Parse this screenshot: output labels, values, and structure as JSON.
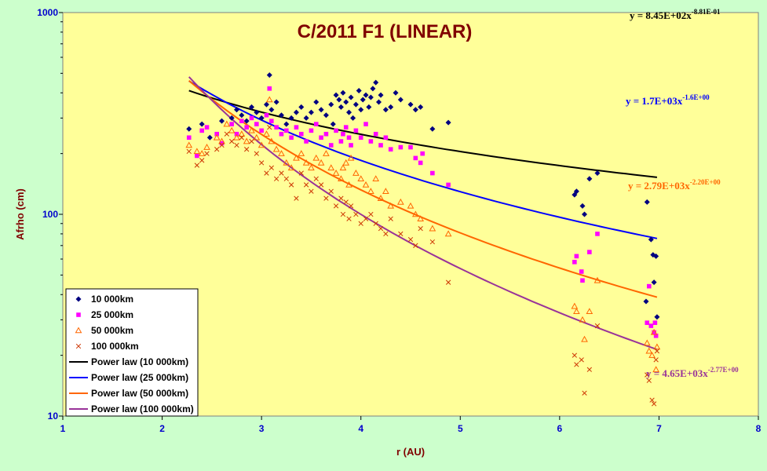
{
  "chart_data": {
    "type": "scatter",
    "title": "C/2011 F1 (LINEAR)",
    "xlabel": "r (AU)",
    "ylabel": "Afrho (cm)",
    "xlim": [
      1,
      8
    ],
    "ylim": [
      10,
      1000
    ],
    "yscale": "log",
    "grid": false,
    "legend_position": "bottom-left",
    "x_ticks": [
      "1",
      "2",
      "3",
      "4",
      "5",
      "6",
      "7",
      "8"
    ],
    "y_ticks": [
      "10",
      "100",
      "1000"
    ],
    "plot_background": "#ffff99",
    "page_background": "#ccffcc",
    "series": [
      {
        "name": "10 000km",
        "marker": "diamond",
        "color": "#000080",
        "points": [
          [
            2.27,
            265
          ],
          [
            2.4,
            280
          ],
          [
            2.48,
            240
          ],
          [
            2.6,
            290
          ],
          [
            2.7,
            300
          ],
          [
            2.75,
            330
          ],
          [
            2.8,
            310
          ],
          [
            2.85,
            290
          ],
          [
            2.9,
            340
          ],
          [
            2.95,
            320
          ],
          [
            3.0,
            300
          ],
          [
            3.05,
            350
          ],
          [
            3.08,
            490
          ],
          [
            3.1,
            330
          ],
          [
            3.15,
            360
          ],
          [
            3.2,
            310
          ],
          [
            3.25,
            280
          ],
          [
            3.3,
            300
          ],
          [
            3.35,
            320
          ],
          [
            3.4,
            340
          ],
          [
            3.45,
            300
          ],
          [
            3.5,
            320
          ],
          [
            3.55,
            360
          ],
          [
            3.6,
            330
          ],
          [
            3.65,
            310
          ],
          [
            3.7,
            350
          ],
          [
            3.72,
            280
          ],
          [
            3.75,
            390
          ],
          [
            3.78,
            370
          ],
          [
            3.8,
            340
          ],
          [
            3.82,
            400
          ],
          [
            3.85,
            360
          ],
          [
            3.88,
            320
          ],
          [
            3.9,
            380
          ],
          [
            3.92,
            300
          ],
          [
            3.95,
            350
          ],
          [
            3.98,
            410
          ],
          [
            4.0,
            330
          ],
          [
            4.02,
            370
          ],
          [
            4.05,
            390
          ],
          [
            4.08,
            340
          ],
          [
            4.1,
            380
          ],
          [
            4.12,
            420
          ],
          [
            4.15,
            450
          ],
          [
            4.18,
            360
          ],
          [
            4.2,
            390
          ],
          [
            4.25,
            330
          ],
          [
            4.3,
            340
          ],
          [
            4.35,
            400
          ],
          [
            4.4,
            370
          ],
          [
            4.5,
            350
          ],
          [
            4.55,
            330
          ],
          [
            4.6,
            340
          ],
          [
            4.72,
            265
          ],
          [
            4.88,
            285
          ],
          [
            6.15,
            125
          ],
          [
            6.17,
            130
          ],
          [
            6.23,
            110
          ],
          [
            6.25,
            100
          ],
          [
            6.3,
            150
          ],
          [
            6.38,
            160
          ],
          [
            6.88,
            115
          ],
          [
            6.92,
            75
          ],
          [
            6.94,
            63
          ],
          [
            6.95,
            46
          ],
          [
            6.97,
            62
          ],
          [
            6.98,
            31
          ],
          [
            6.87,
            37
          ]
        ]
      },
      {
        "name": "25 000km",
        "marker": "square",
        "color": "#ff00ff",
        "points": [
          [
            2.27,
            240
          ],
          [
            2.35,
            195
          ],
          [
            2.4,
            260
          ],
          [
            2.45,
            270
          ],
          [
            2.55,
            250
          ],
          [
            2.6,
            225
          ],
          [
            2.7,
            280
          ],
          [
            2.75,
            250
          ],
          [
            2.8,
            290
          ],
          [
            2.85,
            270
          ],
          [
            2.9,
            300
          ],
          [
            2.95,
            280
          ],
          [
            3.0,
            260
          ],
          [
            3.05,
            310
          ],
          [
            3.08,
            420
          ],
          [
            3.1,
            290
          ],
          [
            3.15,
            270
          ],
          [
            3.2,
            250
          ],
          [
            3.25,
            260
          ],
          [
            3.3,
            240
          ],
          [
            3.35,
            270
          ],
          [
            3.4,
            250
          ],
          [
            3.45,
            230
          ],
          [
            3.5,
            260
          ],
          [
            3.55,
            280
          ],
          [
            3.6,
            240
          ],
          [
            3.65,
            250
          ],
          [
            3.7,
            220
          ],
          [
            3.75,
            260
          ],
          [
            3.8,
            230
          ],
          [
            3.82,
            250
          ],
          [
            3.85,
            270
          ],
          [
            3.88,
            240
          ],
          [
            3.9,
            220
          ],
          [
            3.95,
            260
          ],
          [
            4.0,
            240
          ],
          [
            4.05,
            280
          ],
          [
            4.1,
            230
          ],
          [
            4.15,
            250
          ],
          [
            4.2,
            220
          ],
          [
            4.25,
            240
          ],
          [
            4.3,
            210
          ],
          [
            4.4,
            215
          ],
          [
            4.5,
            215
          ],
          [
            4.55,
            190
          ],
          [
            4.6,
            180
          ],
          [
            4.62,
            200
          ],
          [
            4.72,
            160
          ],
          [
            4.88,
            140
          ],
          [
            6.15,
            58
          ],
          [
            6.17,
            62
          ],
          [
            6.22,
            52
          ],
          [
            6.23,
            47
          ],
          [
            6.3,
            65
          ],
          [
            6.38,
            80
          ],
          [
            6.88,
            29
          ],
          [
            6.9,
            44
          ],
          [
            6.92,
            28
          ],
          [
            6.95,
            26
          ],
          [
            6.96,
            29
          ],
          [
            6.97,
            25
          ]
        ]
      },
      {
        "name": "50 000km",
        "marker": "triangle",
        "color": "#ff6600",
        "points": [
          [
            2.27,
            220
          ],
          [
            2.35,
            205
          ],
          [
            2.4,
            200
          ],
          [
            2.45,
            215
          ],
          [
            2.55,
            240
          ],
          [
            2.6,
            230
          ],
          [
            2.65,
            280
          ],
          [
            2.7,
            260
          ],
          [
            2.75,
            240
          ],
          [
            2.8,
            250
          ],
          [
            2.85,
            230
          ],
          [
            2.9,
            260
          ],
          [
            2.95,
            240
          ],
          [
            3.0,
            220
          ],
          [
            3.05,
            250
          ],
          [
            3.08,
            370
          ],
          [
            3.1,
            230
          ],
          [
            3.15,
            210
          ],
          [
            3.2,
            200
          ],
          [
            3.25,
            180
          ],
          [
            3.3,
            170
          ],
          [
            3.35,
            190
          ],
          [
            3.4,
            200
          ],
          [
            3.45,
            180
          ],
          [
            3.5,
            170
          ],
          [
            3.55,
            190
          ],
          [
            3.6,
            180
          ],
          [
            3.65,
            200
          ],
          [
            3.7,
            170
          ],
          [
            3.75,
            160
          ],
          [
            3.8,
            150
          ],
          [
            3.82,
            170
          ],
          [
            3.85,
            180
          ],
          [
            3.88,
            140
          ],
          [
            3.9,
            190
          ],
          [
            3.95,
            160
          ],
          [
            4.0,
            150
          ],
          [
            4.05,
            140
          ],
          [
            4.1,
            130
          ],
          [
            4.15,
            150
          ],
          [
            4.2,
            120
          ],
          [
            4.25,
            130
          ],
          [
            4.3,
            110
          ],
          [
            4.4,
            115
          ],
          [
            4.5,
            110
          ],
          [
            4.55,
            100
          ],
          [
            4.6,
            95
          ],
          [
            4.72,
            85
          ],
          [
            4.88,
            80
          ],
          [
            6.15,
            35
          ],
          [
            6.17,
            33
          ],
          [
            6.23,
            30
          ],
          [
            6.25,
            24
          ],
          [
            6.3,
            33
          ],
          [
            6.38,
            47
          ],
          [
            6.88,
            23
          ],
          [
            6.9,
            21
          ],
          [
            6.93,
            20
          ],
          [
            6.95,
            26
          ],
          [
            6.97,
            17
          ],
          [
            6.98,
            22
          ]
        ]
      },
      {
        "name": "100 000km",
        "marker": "x",
        "color": "#cc3300",
        "points": [
          [
            2.27,
            205
          ],
          [
            2.35,
            175
          ],
          [
            2.4,
            185
          ],
          [
            2.45,
            200
          ],
          [
            2.55,
            210
          ],
          [
            2.6,
            220
          ],
          [
            2.65,
            250
          ],
          [
            2.7,
            230
          ],
          [
            2.75,
            220
          ],
          [
            2.8,
            240
          ],
          [
            2.85,
            210
          ],
          [
            2.9,
            230
          ],
          [
            2.95,
            200
          ],
          [
            3.0,
            180
          ],
          [
            3.05,
            160
          ],
          [
            3.08,
            270
          ],
          [
            3.1,
            170
          ],
          [
            3.15,
            150
          ],
          [
            3.2,
            160
          ],
          [
            3.25,
            150
          ],
          [
            3.3,
            140
          ],
          [
            3.35,
            120
          ],
          [
            3.4,
            160
          ],
          [
            3.45,
            140
          ],
          [
            3.5,
            130
          ],
          [
            3.55,
            150
          ],
          [
            3.6,
            140
          ],
          [
            3.65,
            120
          ],
          [
            3.7,
            130
          ],
          [
            3.75,
            110
          ],
          [
            3.8,
            120
          ],
          [
            3.82,
            100
          ],
          [
            3.85,
            115
          ],
          [
            3.88,
            95
          ],
          [
            3.9,
            110
          ],
          [
            3.95,
            100
          ],
          [
            4.0,
            90
          ],
          [
            4.05,
            95
          ],
          [
            4.1,
            100
          ],
          [
            4.15,
            90
          ],
          [
            4.2,
            85
          ],
          [
            4.25,
            80
          ],
          [
            4.3,
            95
          ],
          [
            4.4,
            80
          ],
          [
            4.5,
            75
          ],
          [
            4.55,
            70
          ],
          [
            4.6,
            85
          ],
          [
            4.72,
            73
          ],
          [
            4.88,
            46
          ],
          [
            6.15,
            20
          ],
          [
            6.17,
            18
          ],
          [
            6.22,
            19
          ],
          [
            6.25,
            13
          ],
          [
            6.3,
            17
          ],
          [
            6.38,
            28
          ],
          [
            6.88,
            16
          ],
          [
            6.9,
            15
          ],
          [
            6.93,
            12
          ],
          [
            6.95,
            11.5
          ],
          [
            6.97,
            19
          ],
          [
            6.98,
            21
          ]
        ]
      }
    ],
    "fits": [
      {
        "name": "Power law (10 000km)",
        "color": "#000000",
        "a": 845,
        "b": -0.881,
        "x_range": [
          2.27,
          6.98
        ]
      },
      {
        "name": "Power law (25 000km)",
        "color": "#0000ff",
        "a": 1700,
        "b": -1.6,
        "x_range": [
          2.27,
          6.98
        ]
      },
      {
        "name": "Power law (50 000km)",
        "color": "#ff6600",
        "a": 2790,
        "b": -2.2,
        "x_range": [
          2.27,
          6.98
        ]
      },
      {
        "name": "Power law (100 000km)",
        "color": "#993399",
        "a": 4650,
        "b": -2.77,
        "x_range": [
          2.27,
          6.98
        ]
      }
    ],
    "annotations": [
      {
        "base": "y = 8.45E+02x",
        "exp": "-8.81E-01",
        "color": "#000000"
      },
      {
        "base": "y = 1.7E+03x",
        "exp": "-1.6E+00",
        "color": "#0000ff"
      },
      {
        "base": "y = 2.79E+03x",
        "exp": "-2.20E+00",
        "color": "#ff6600"
      },
      {
        "base": "y = 4.65E+03x",
        "exp": "-2.77E+00",
        "color": "#993399"
      }
    ]
  }
}
